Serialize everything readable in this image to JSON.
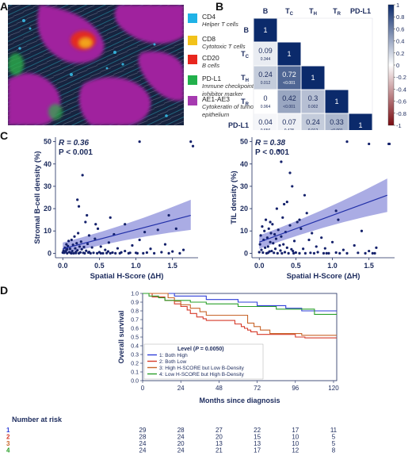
{
  "panels": {
    "a": "A",
    "b": "B",
    "c": "C",
    "d": "D"
  },
  "legend_a": [
    {
      "color": "#1fb2e6",
      "label": "CD4",
      "sub": "Helper T cells"
    },
    {
      "color": "#f2c21a",
      "label": "CD8",
      "sub": "Cytotoxic T cells"
    },
    {
      "color": "#e8261e",
      "label": "CD20",
      "sub": "B cells"
    },
    {
      "color": "#22b04b",
      "label": "PD-L1",
      "sub": "Immune checkpoint inhibitor marker"
    },
    {
      "color": "#a63ab0",
      "label": "AE1-AE3",
      "sub": "Cytokeratin of tumour epithelium"
    }
  ],
  "chart_data": [
    {
      "type": "heatmap",
      "labels": [
        "B",
        "TC",
        "TH",
        "TR",
        "PD-L1"
      ],
      "label_display": [
        {
          "main": "B",
          "sub": ""
        },
        {
          "main": "T",
          "sub": "C"
        },
        {
          "main": "T",
          "sub": "H"
        },
        {
          "main": "T",
          "sub": "R"
        },
        {
          "main": "PD-L1",
          "sub": ""
        }
      ],
      "cells": [
        {
          "row": 0,
          "col": 0,
          "r": "1",
          "p": ""
        },
        {
          "row": 1,
          "col": 0,
          "r": "0.09",
          "p": "0.344"
        },
        {
          "row": 1,
          "col": 1,
          "r": "1",
          "p": ""
        },
        {
          "row": 2,
          "col": 0,
          "r": "0.24",
          "p": "0.012"
        },
        {
          "row": 2,
          "col": 1,
          "r": "0.72",
          "p": "<0.001"
        },
        {
          "row": 2,
          "col": 2,
          "r": "1",
          "p": ""
        },
        {
          "row": 3,
          "col": 0,
          "r": "0",
          "p": "0.964"
        },
        {
          "row": 3,
          "col": 1,
          "r": "0.42",
          "p": "<0.001"
        },
        {
          "row": 3,
          "col": 2,
          "r": "0.3",
          "p": "0.002"
        },
        {
          "row": 3,
          "col": 3,
          "r": "1",
          "p": ""
        },
        {
          "row": 4,
          "col": 0,
          "r": "0.04",
          "p": "0.656"
        },
        {
          "row": 4,
          "col": 1,
          "r": "0.07",
          "p": "0.475"
        },
        {
          "row": 4,
          "col": 2,
          "r": "0.24",
          "p": "0.012"
        },
        {
          "row": 4,
          "col": 3,
          "r": "0.33",
          "p": "<0.001"
        },
        {
          "row": 4,
          "col": 4,
          "r": "1",
          "p": ""
        }
      ],
      "colorbar_ticks": [
        "1",
        "0.8",
        "0.6",
        "0.4",
        "0.2",
        "0",
        "-0.2",
        "-0.4",
        "-0.6",
        "-0.8",
        "-1"
      ],
      "colorbar_values": [
        1,
        0.8,
        0.6,
        0.4,
        0.2,
        0,
        -0.2,
        -0.4,
        -0.6,
        -0.8,
        -1
      ],
      "colors": {
        "pos": "#0b2a6b",
        "neg": "#7a0c12",
        "mid": "#ffffff"
      }
    },
    {
      "type": "scatter",
      "annotation_r": "R = 0.36",
      "annotation_p": "P < 0.001",
      "xlabel": "Spatial H-Score (ΔH)",
      "ylabel": "Stromal B-cell density (%)",
      "xlim": [
        -0.1,
        1.85
      ],
      "ylim": [
        -2,
        52
      ],
      "xticks": [
        "0.0",
        "0.5",
        "1.0",
        "1.5"
      ],
      "xtick_values": [
        0,
        0.5,
        1.0,
        1.5
      ],
      "yticks": [
        "0",
        "10",
        "20",
        "30",
        "40",
        "50"
      ],
      "ytick_values": [
        0,
        10,
        20,
        30,
        40,
        50
      ],
      "fit": {
        "x": [
          0.0,
          1.75
        ],
        "y": [
          2.0,
          17.0
        ],
        "ci_lower": [
          -0.5,
          10.5
        ],
        "ci_upper": [
          4.8,
          24.0
        ]
      },
      "points": [
        [
          0.0,
          0.3
        ],
        [
          0.01,
          1.2
        ],
        [
          0.02,
          0.2
        ],
        [
          0.03,
          2.5
        ],
        [
          0.04,
          0.8
        ],
        [
          0.05,
          4.0
        ],
        [
          0.05,
          1.5
        ],
        [
          0.06,
          0.0
        ],
        [
          0.07,
          3.2
        ],
        [
          0.08,
          5.5
        ],
        [
          0.09,
          0.5
        ],
        [
          0.1,
          2.0
        ],
        [
          0.11,
          0.1
        ],
        [
          0.12,
          6.0
        ],
        [
          0.13,
          1.0
        ],
        [
          0.14,
          3.8
        ],
        [
          0.15,
          0.0
        ],
        [
          0.16,
          7.5
        ],
        [
          0.17,
          2.2
        ],
        [
          0.18,
          0.6
        ],
        [
          0.19,
          4.5
        ],
        [
          0.2,
          1.3
        ],
        [
          0.21,
          9.0
        ],
        [
          0.22,
          0.0
        ],
        [
          0.23,
          3.0
        ],
        [
          0.24,
          0.4
        ],
        [
          0.25,
          5.2
        ],
        [
          0.26,
          1.8
        ],
        [
          0.28,
          0.2
        ],
        [
          0.29,
          2.8
        ],
        [
          0.3,
          0.0
        ],
        [
          0.31,
          14.0
        ],
        [
          0.32,
          1.1
        ],
        [
          0.33,
          17.0
        ],
        [
          0.34,
          4.2
        ],
        [
          0.35,
          0.3
        ],
        [
          0.36,
          8.0
        ],
        [
          0.38,
          0.0
        ],
        [
          0.4,
          2.6
        ],
        [
          0.42,
          0.2
        ],
        [
          0.44,
          6.5
        ],
        [
          0.45,
          13.0
        ],
        [
          0.47,
          0.0
        ],
        [
          0.48,
          11.0
        ],
        [
          0.5,
          0.5
        ],
        [
          0.52,
          3.0
        ],
        [
          0.55,
          0.0
        ],
        [
          0.58,
          1.5
        ],
        [
          0.6,
          0.1
        ],
        [
          0.63,
          4.8
        ],
        [
          0.65,
          0.0
        ],
        [
          0.68,
          0.3
        ],
        [
          0.7,
          8.5
        ],
        [
          0.72,
          0.0
        ],
        [
          0.75,
          2.2
        ],
        [
          0.78,
          0.0
        ],
        [
          0.8,
          0.4
        ],
        [
          0.85,
          1.0
        ],
        [
          0.9,
          0.0
        ],
        [
          0.95,
          3.5
        ],
        [
          1.0,
          0.2
        ],
        [
          1.05,
          6.0
        ],
        [
          1.1,
          0.0
        ],
        [
          1.12,
          9.5
        ],
        [
          1.15,
          0.3
        ],
        [
          1.2,
          2.0
        ],
        [
          1.25,
          0.0
        ],
        [
          1.3,
          10.5
        ],
        [
          1.35,
          0.5
        ],
        [
          1.4,
          4.0
        ],
        [
          1.45,
          0.0
        ],
        [
          1.5,
          0.8
        ],
        [
          1.55,
          11.0
        ],
        [
          1.6,
          0.0
        ],
        [
          1.65,
          1.5
        ],
        [
          0.65,
          16.0
        ],
        [
          0.2,
          24.0
        ],
        [
          0.27,
          35.0
        ],
        [
          0.22,
          21.0
        ],
        [
          1.05,
          50.0
        ],
        [
          1.75,
          50.0
        ],
        [
          1.78,
          48.0
        ],
        [
          1.45,
          17.0
        ],
        [
          0.85,
          13.0
        ],
        [
          0.12,
          0.0
        ],
        [
          0.36,
          0.6
        ],
        [
          0.52,
          0.0
        ],
        [
          0.62,
          0.8
        ],
        [
          0.92,
          0.2
        ],
        [
          1.02,
          0.0
        ],
        [
          0.06,
          1.8
        ],
        [
          0.18,
          0.1
        ]
      ]
    },
    {
      "type": "scatter",
      "annotation_r": "R = 0.38",
      "annotation_p": "P < 0.001",
      "xlabel": "Spatial H-Score (ΔH)",
      "ylabel": "TIL density (%)",
      "xlim": [
        -0.1,
        1.85
      ],
      "ylim": [
        -2,
        52
      ],
      "xticks": [
        "0.0",
        "0.5",
        "1.0",
        "1.5"
      ],
      "xtick_values": [
        0,
        0.5,
        1.0,
        1.5
      ],
      "yticks": [
        "0",
        "10",
        "20",
        "30",
        "40",
        "50"
      ],
      "ytick_values": [
        0,
        10,
        20,
        30,
        40,
        50
      ],
      "fit": {
        "x": [
          0.0,
          1.75
        ],
        "y": [
          5.0,
          26.0
        ],
        "ci_lower": [
          2.0,
          18.5
        ],
        "ci_upper": [
          8.0,
          33.5
        ]
      },
      "points": [
        [
          0.0,
          0.5
        ],
        [
          0.01,
          4.0
        ],
        [
          0.02,
          8.0
        ],
        [
          0.03,
          1.5
        ],
        [
          0.04,
          12.0
        ],
        [
          0.05,
          0.3
        ],
        [
          0.06,
          6.0
        ],
        [
          0.07,
          10.0
        ],
        [
          0.08,
          2.5
        ],
        [
          0.09,
          15.0
        ],
        [
          0.1,
          0.0
        ],
        [
          0.11,
          7.0
        ],
        [
          0.12,
          3.0
        ],
        [
          0.13,
          11.0
        ],
        [
          0.14,
          0.8
        ],
        [
          0.15,
          5.0
        ],
        [
          0.16,
          9.0
        ],
        [
          0.17,
          1.0
        ],
        [
          0.18,
          13.0
        ],
        [
          0.19,
          4.5
        ],
        [
          0.2,
          0.2
        ],
        [
          0.21,
          8.5
        ],
        [
          0.22,
          2.0
        ],
        [
          0.23,
          6.5
        ],
        [
          0.24,
          20.0
        ],
        [
          0.25,
          0.0
        ],
        [
          0.26,
          10.5
        ],
        [
          0.28,
          3.5
        ],
        [
          0.29,
          1.2
        ],
        [
          0.3,
          7.5
        ],
        [
          0.31,
          0.0
        ],
        [
          0.32,
          16.0
        ],
        [
          0.33,
          4.0
        ],
        [
          0.34,
          22.0
        ],
        [
          0.35,
          0.5
        ],
        [
          0.36,
          9.5
        ],
        [
          0.38,
          2.5
        ],
        [
          0.4,
          0.0
        ],
        [
          0.42,
          12.5
        ],
        [
          0.44,
          1.8
        ],
        [
          0.45,
          30.0
        ],
        [
          0.47,
          0.0
        ],
        [
          0.48,
          5.5
        ],
        [
          0.5,
          0.3
        ],
        [
          0.52,
          14.0
        ],
        [
          0.55,
          0.0
        ],
        [
          0.57,
          11.0
        ],
        [
          0.6,
          2.0
        ],
        [
          0.63,
          0.0
        ],
        [
          0.65,
          18.0
        ],
        [
          0.68,
          6.0
        ],
        [
          0.7,
          0.2
        ],
        [
          0.72,
          9.0
        ],
        [
          0.75,
          0.0
        ],
        [
          0.78,
          3.0
        ],
        [
          0.8,
          0.5
        ],
        [
          0.85,
          7.0
        ],
        [
          0.88,
          0.0
        ],
        [
          0.9,
          2.2
        ],
        [
          0.95,
          0.0
        ],
        [
          1.0,
          5.0
        ],
        [
          1.05,
          0.3
        ],
        [
          1.08,
          15.0
        ],
        [
          1.1,
          0.0
        ],
        [
          1.15,
          1.5
        ],
        [
          1.2,
          0.0
        ],
        [
          1.3,
          3.5
        ],
        [
          1.35,
          0.2
        ],
        [
          1.4,
          10.0
        ],
        [
          1.45,
          0.0
        ],
        [
          1.5,
          1.0
        ],
        [
          1.55,
          0.0
        ],
        [
          1.6,
          2.5
        ],
        [
          0.27,
          46.0
        ],
        [
          0.3,
          41.0
        ],
        [
          0.42,
          36.0
        ],
        [
          1.2,
          50.0
        ],
        [
          1.77,
          49.0
        ],
        [
          1.78,
          49.0
        ],
        [
          1.5,
          49.0
        ],
        [
          0.15,
          14.0
        ],
        [
          0.55,
          15.0
        ],
        [
          0.38,
          23.0
        ],
        [
          1.05,
          19.0
        ],
        [
          0.62,
          26.0
        ],
        [
          1.58,
          0.0
        ],
        [
          0.92,
          0.0
        ],
        [
          0.46,
          1.0
        ],
        [
          0.12,
          0.2
        ]
      ]
    },
    {
      "type": "line",
      "subtype": "kaplan-meier",
      "xlabel": "Months since diagnosis",
      "ylabel": "Overall survival",
      "xlim": [
        0,
        122
      ],
      "ylim": [
        0,
        1.0
      ],
      "xticks": [
        "0",
        "24",
        "48",
        "72",
        "96",
        "120"
      ],
      "xtick_values": [
        0,
        24,
        48,
        72,
        96,
        120
      ],
      "yticks": [
        "0.0",
        "0.1",
        "0.2",
        "0.3",
        "0.4",
        "0.5",
        "0.6",
        "0.7",
        "0.8",
        "0.9",
        "1.0"
      ],
      "ytick_values": [
        0,
        0.1,
        0.2,
        0.3,
        0.4,
        0.5,
        0.6,
        0.7,
        0.8,
        0.9,
        1.0
      ],
      "legend_title": "Level (P = 0.0050)",
      "legend_title_main": "Level (",
      "legend_title_italic": "P",
      "legend_title_rest": " = 0.0050)",
      "series": [
        {
          "name": "1: Both High",
          "color": "#2f3fd8",
          "x": [
            0,
            20,
            32,
            40,
            52,
            60,
            66,
            72,
            80,
            90,
            95,
            100,
            122
          ],
          "y": [
            1.0,
            0.97,
            0.97,
            0.93,
            0.93,
            0.9,
            0.9,
            0.86,
            0.86,
            0.83,
            0.83,
            0.8,
            0.8
          ]
        },
        {
          "name": "2: Both Low",
          "color": "#d63a2a",
          "x": [
            0,
            6,
            10,
            14,
            18,
            20,
            24,
            28,
            30,
            34,
            38,
            40,
            48,
            58,
            62,
            64,
            66,
            68,
            72,
            78,
            84,
            96,
            102,
            122
          ],
          "y": [
            1.0,
            0.96,
            0.96,
            0.92,
            0.92,
            0.88,
            0.85,
            0.81,
            0.77,
            0.73,
            0.71,
            0.69,
            0.69,
            0.65,
            0.62,
            0.6,
            0.58,
            0.56,
            0.53,
            0.53,
            0.53,
            0.5,
            0.49,
            0.49
          ]
        },
        {
          "name": "3: High H-SCORE but Low B-Density",
          "color": "#c8652a",
          "x": [
            0,
            16,
            20,
            24,
            30,
            36,
            40,
            60,
            66,
            70,
            74,
            80,
            96,
            100,
            122
          ],
          "y": [
            1.0,
            0.95,
            0.91,
            0.87,
            0.83,
            0.79,
            0.75,
            0.75,
            0.66,
            0.62,
            0.58,
            0.54,
            0.54,
            0.52,
            0.52
          ]
        },
        {
          "name": "4: Low H-SCORE but High B-Density",
          "color": "#2aa02a",
          "x": [
            0,
            4,
            10,
            14,
            20,
            30,
            40,
            60,
            70,
            84,
            96,
            108,
            122
          ],
          "y": [
            1.0,
            0.97,
            0.95,
            0.92,
            0.92,
            0.9,
            0.88,
            0.85,
            0.85,
            0.82,
            0.82,
            0.76,
            0.76
          ]
        }
      ],
      "risk_table": {
        "title": "Number at risk",
        "rows": [
          {
            "id": "1",
            "color": "#2f3fd8",
            "counts": [
              "29",
              "28",
              "27",
              "22",
              "17",
              "11"
            ]
          },
          {
            "id": "2",
            "color": "#d63a2a",
            "counts": [
              "28",
              "24",
              "20",
              "15",
              "10",
              "5"
            ]
          },
          {
            "id": "3",
            "color": "#c8652a",
            "counts": [
              "24",
              "20",
              "13",
              "13",
              "10",
              "5"
            ]
          },
          {
            "id": "4",
            "color": "#2aa02a",
            "counts": [
              "24",
              "24",
              "21",
              "17",
              "12",
              "8"
            ]
          }
        ]
      }
    }
  ]
}
